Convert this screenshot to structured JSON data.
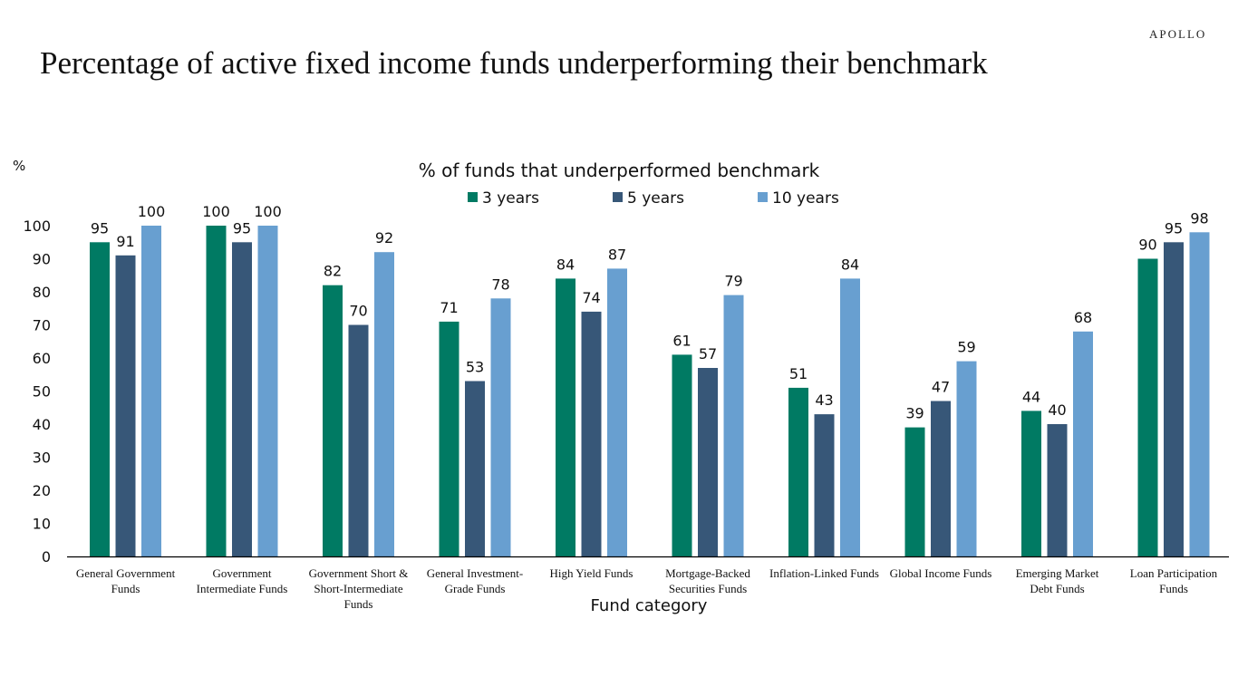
{
  "header": {
    "brand": "APOLLO",
    "title": "Percentage of active fixed income funds underperforming their benchmark"
  },
  "colors": {
    "3 years": "#007A63",
    "5 years": "#375778",
    "10 years": "#689FD0",
    "axis": "#000000"
  },
  "chart_data": {
    "type": "bar",
    "title": "% of funds that underperformed benchmark",
    "xlabel": "Fund category",
    "ylabel": "%",
    "ylim": [
      0,
      100
    ],
    "yticks": [
      0,
      10,
      20,
      30,
      40,
      50,
      60,
      70,
      80,
      90,
      100
    ],
    "grid": false,
    "legend_position": "top-center",
    "categories": [
      [
        "General Government",
        "Funds"
      ],
      [
        "Government",
        "Intermediate Funds"
      ],
      [
        "Government Short &",
        "Short-Intermediate",
        "Funds"
      ],
      [
        "General Investment-",
        "Grade Funds"
      ],
      [
        "High Yield Funds"
      ],
      [
        "Mortgage-Backed",
        "Securities Funds"
      ],
      [
        "Inflation-Linked Funds"
      ],
      [
        "Global Income Funds"
      ],
      [
        "Emerging Market",
        "Debt Funds"
      ],
      [
        "Loan Participation",
        "Funds"
      ]
    ],
    "series": [
      {
        "name": "3 years",
        "values": [
          95,
          100,
          82,
          71,
          84,
          61,
          51,
          39,
          44,
          90
        ]
      },
      {
        "name": "5 years",
        "values": [
          91,
          95,
          70,
          53,
          74,
          57,
          43,
          47,
          40,
          95
        ]
      },
      {
        "name": "10 years",
        "values": [
          100,
          100,
          92,
          78,
          87,
          79,
          84,
          59,
          68,
          98
        ]
      }
    ]
  }
}
